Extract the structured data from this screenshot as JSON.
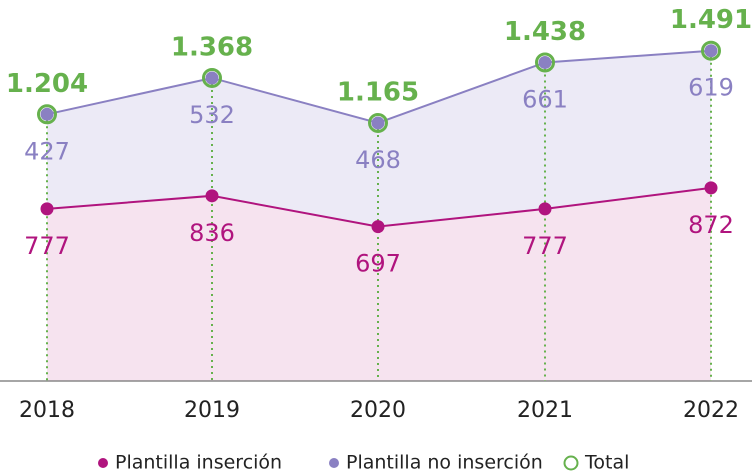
{
  "chart_data": {
    "type": "stacked-area",
    "categories": [
      "2018",
      "2019",
      "2020",
      "2021",
      "2022"
    ],
    "series": [
      {
        "name": "Plantilla inserción",
        "color": "#b0147e",
        "fill": "#f6e3ef",
        "values": [
          777,
          836,
          697,
          777,
          872
        ]
      },
      {
        "name": "Plantilla no inserción",
        "color": "#8a80c2",
        "fill": "#eceaf6",
        "values": [
          427,
          532,
          468,
          661,
          619
        ]
      }
    ],
    "total": {
      "name": "Total",
      "color": "#66b14d",
      "values": [
        1204,
        1368,
        1165,
        1438,
        1491
      ],
      "value_labels": [
        "1.204",
        "1.368",
        "1.165",
        "1.438",
        "1.491"
      ]
    },
    "ylim": [
      0,
      1720
    ]
  }
}
